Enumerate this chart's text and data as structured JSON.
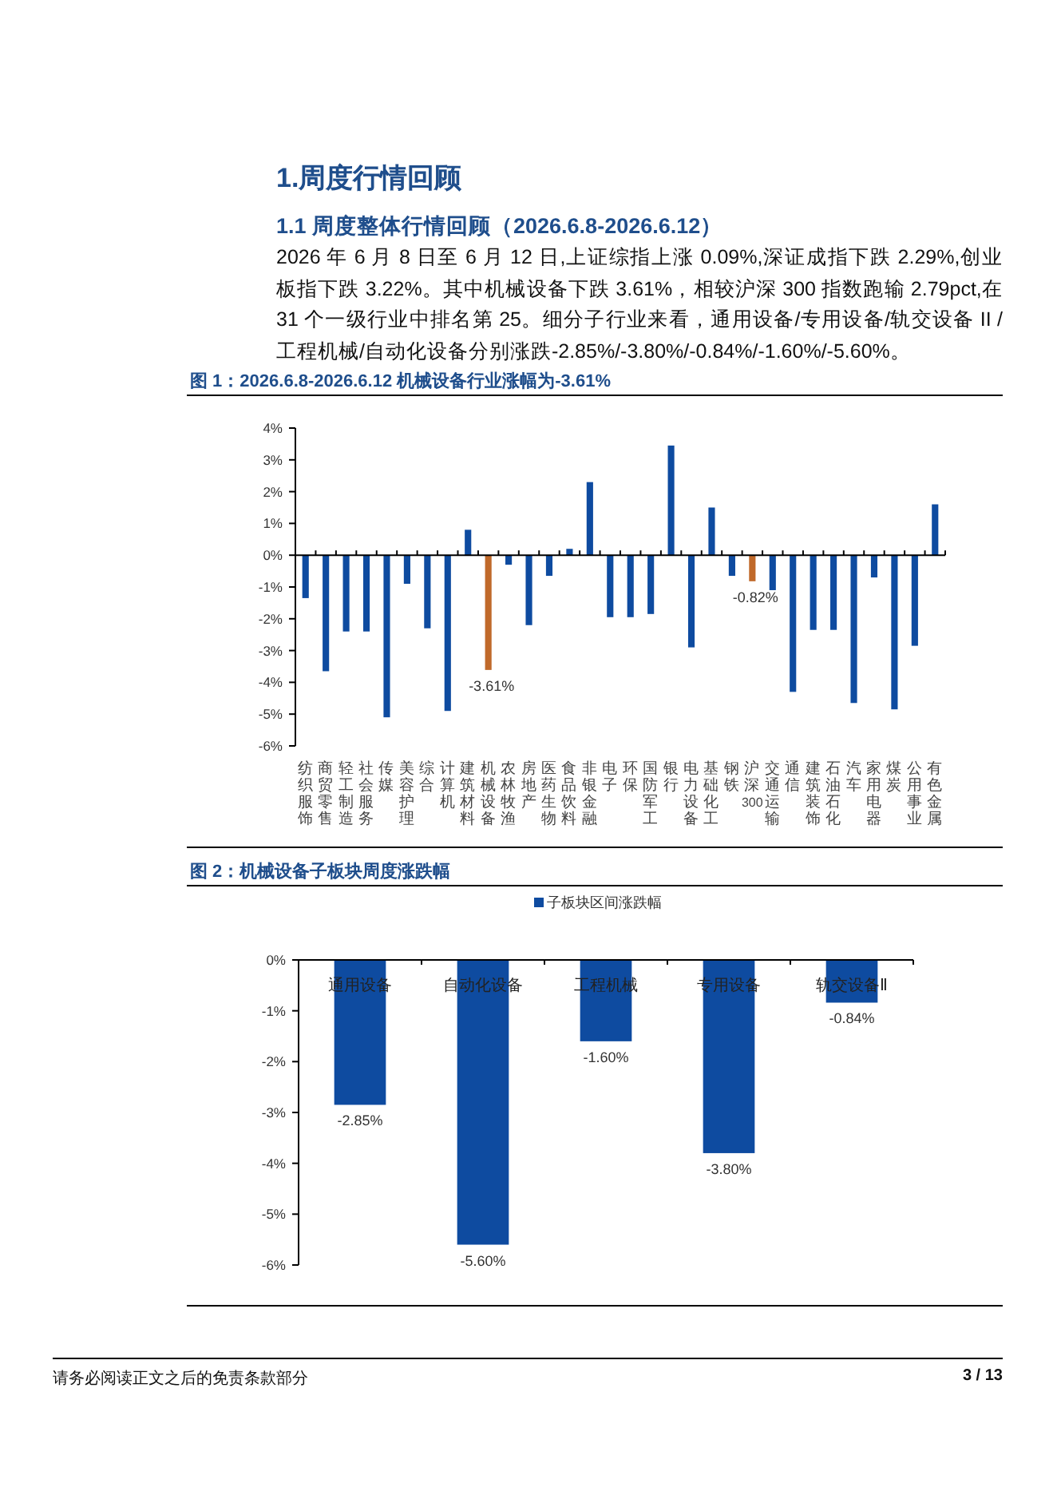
{
  "chart_data": [
    {
      "type": "other",
      "title": "1.周度行情回顾",
      "subtitle": "1.1 周度整体行情回顾（2026.6.8-2026.6.12）",
      "annotations": [
        "2026 年 6 月 8 日至 6 月 12 日,上证综指上涨 0.09%,深证成指下跌 2.29%,创业板指下跌 3.22%。其中机械设备下跌 3.61%，相较沪深 300 指数跑输 2.79pct,在 31 个一级行业中排名第 25。细分子行业来看，通用设备/专用设备/轨交设备 II /工程机械/自动化设备分别涨跌-2.85%/-3.80%/-0.84%/-1.60%/-5.60%。",
        "请务必阅读正文之后的免责条款部分",
        "3 / 13"
      ]
    },
    {
      "type": "bar",
      "title": "图 1：2026.6.8-2026.6.12 机械设备行业涨幅为-3.61%",
      "categories": [
        "纺织服饰",
        "商贸零售",
        "轻工制造",
        "社会服务",
        "传媒",
        "美容护理",
        "综合",
        "计算机",
        "建筑材料",
        "机械设备",
        "农林牧渔",
        "房地产",
        "医药生物",
        "食品饮料",
        "非银金融",
        "电子",
        "环保",
        "国防军工",
        "银行",
        "电力设备",
        "基础化工",
        "钢铁",
        "沪深300",
        "交通运输",
        "通信",
        "建筑装饰",
        "石油石化",
        "汽车",
        "家用电器",
        "煤炭",
        "公用事业",
        "有色金属"
      ],
      "values": [
        -1.35,
        -3.65,
        -2.4,
        -2.4,
        -5.1,
        -0.9,
        -2.3,
        -4.9,
        0.8,
        -3.61,
        -0.3,
        -2.2,
        -0.65,
        0.2,
        2.3,
        -1.95,
        -1.95,
        -1.85,
        3.45,
        -2.9,
        1.5,
        -0.65,
        -0.82,
        -1.1,
        -4.3,
        -2.35,
        -2.35,
        -4.65,
        -0.7,
        -4.85,
        -2.85,
        1.6
      ],
      "colors": [
        "#0e4ba0",
        "#0e4ba0",
        "#0e4ba0",
        "#0e4ba0",
        "#0e4ba0",
        "#0e4ba0",
        "#0e4ba0",
        "#0e4ba0",
        "#0e4ba0",
        "#c0692a",
        "#0e4ba0",
        "#0e4ba0",
        "#0e4ba0",
        "#0e4ba0",
        "#0e4ba0",
        "#0e4ba0",
        "#0e4ba0",
        "#0e4ba0",
        "#0e4ba0",
        "#0e4ba0",
        "#0e4ba0",
        "#0e4ba0",
        "#c0692a",
        "#0e4ba0",
        "#0e4ba0",
        "#0e4ba0",
        "#0e4ba0",
        "#0e4ba0",
        "#0e4ba0",
        "#0e4ba0",
        "#0e4ba0",
        "#0e4ba0"
      ],
      "value_labels": [
        null,
        null,
        null,
        null,
        null,
        null,
        null,
        null,
        null,
        "-3.61%",
        null,
        null,
        null,
        null,
        null,
        null,
        null,
        null,
        null,
        null,
        null,
        null,
        "-0.82%",
        null,
        null,
        null,
        null,
        null,
        null,
        null,
        null,
        null
      ],
      "ylim": [
        -6,
        4
      ],
      "yticks": [
        {
          "value": 4,
          "label": "4%"
        },
        {
          "value": 3,
          "label": "3%"
        },
        {
          "value": 2,
          "label": "2%"
        },
        {
          "value": 1,
          "label": "1%"
        },
        {
          "value": 0,
          "label": "0%"
        },
        {
          "value": -1,
          "label": "-1%"
        },
        {
          "value": -2,
          "label": "-2%"
        },
        {
          "value": -3,
          "label": "-3%"
        },
        {
          "value": -4,
          "label": "-4%"
        },
        {
          "value": -5,
          "label": "-5%"
        },
        {
          "value": -6,
          "label": "-6%"
        }
      ]
    },
    {
      "type": "bar",
      "title": "图 2：机械设备子板块周度涨跌幅",
      "legend": "top",
      "categories": [
        "通用设备",
        "自动化设备",
        "工程机械",
        "专用设备",
        "轨交设备Ⅱ"
      ],
      "series": [
        {
          "name": "子板块区间涨跌幅",
          "color": "#0e4ba0",
          "values": [
            -2.85,
            -5.6,
            -1.6,
            -3.8,
            -0.84
          ],
          "value_labels": [
            "-2.85%",
            "-5.60%",
            "-1.60%",
            "-3.80%",
            "-0.84%"
          ]
        }
      ],
      "ylim": [
        -6,
        0
      ],
      "yticks": [
        {
          "value": 0,
          "label": "0%"
        },
        {
          "value": -1,
          "label": "-1%"
        },
        {
          "value": -2,
          "label": "-2%"
        },
        {
          "value": -3,
          "label": "-3%"
        },
        {
          "value": -4,
          "label": "-4%"
        },
        {
          "value": -5,
          "label": "-5%"
        },
        {
          "value": -6,
          "label": "-6%"
        }
      ]
    }
  ]
}
